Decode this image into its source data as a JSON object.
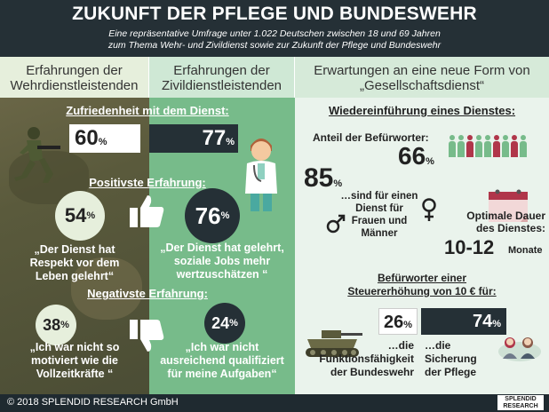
{
  "header": {
    "title": "ZUKUNFT DER PFLEGE UND BUNDESWEHR",
    "subtitle_line1": "Eine repräsentative Umfrage unter 1.022 Deutschen zwischen 18 und 69 Jahren",
    "subtitle_line2": "zum Thema Wehr- und Zivildienst sowie zur Zukunft der Pflege und Bundeswehr"
  },
  "columns": {
    "left_l1": "Erfahrungen der",
    "left_l2": "Wehrdienstleistenden",
    "mid_l1": "Erfahrungen der",
    "mid_l2": "Zivildienstleistenden",
    "right_l1": "Erwartungen an eine neue Form von",
    "right_l2": "„Gesellschaftsdienst“"
  },
  "satisfaction": {
    "label": "Zufriedenheit mit dem Dienst:",
    "wehr_value": "60",
    "zivil_value": "77",
    "pct": "%"
  },
  "positive": {
    "label": "Positivste Erfahrung:",
    "wehr_value": "54",
    "zivil_value": "76",
    "wehr_quote_l1": "„Der Dienst hat",
    "wehr_quote_l2": "Respekt vor dem",
    "wehr_quote_l3": "Leben gelehrt“",
    "zivil_quote_l1": "„Der Dienst hat gelehrt,",
    "zivil_quote_l2": "soziale Jobs mehr",
    "zivil_quote_l3": "wertzuschätzen “"
  },
  "negative": {
    "label": "Negativste Erfahrung:",
    "wehr_value": "38",
    "zivil_value": "24",
    "wehr_quote_l1": "„Ich war nicht so",
    "wehr_quote_l2": "motiviert wie die",
    "wehr_quote_l3": "Vollzeitkräfte “",
    "zivil_quote_l1": "„Ich war nicht",
    "zivil_quote_l2": "ausreichend qualifiziert",
    "zivil_quote_l3": "für meine Aufgaben“"
  },
  "reintroduction": {
    "label": "Wiedereinführung eines Dienstes:",
    "supporters_label": "Anteil der Befürworter:",
    "supporters_value": "66",
    "both_value": "85",
    "both_l1": "…sind für einen",
    "both_l2": "Dienst für",
    "both_l3": "Frauen und",
    "both_l4": "Männer",
    "duration_l1": "Optimale Dauer",
    "duration_l2": "des Dienstes:",
    "duration_value": "10-12",
    "duration_unit": "Monate",
    "pct": "%"
  },
  "tax": {
    "label_l1": "Befürworter einer",
    "label_l2": "Steuererhöhung von 10 € für:",
    "bw_value": "26",
    "care_value": "74",
    "bw_l1": "…die",
    "bw_l2": "Funktionsfähigkeit",
    "bw_l3": "der Bundeswehr",
    "care_l1": "…die",
    "care_l2": "Sicherung",
    "care_l3": "der Pflege"
  },
  "footer": {
    "copyright": "© 2018 SPLENDID RESEARCH GmbH",
    "logo_l1": "SPLENDID",
    "logo_l2": "RESEARCH"
  },
  "colors": {
    "dark": "#253036",
    "green": "#77bb8a",
    "olive": "#5a5a3c",
    "red": "#b0364a"
  },
  "icons": [
    "soldier-icon",
    "doctor-icon",
    "thumbs-up-icon",
    "thumbs-down-icon",
    "people-icon",
    "female-icon",
    "male-icon",
    "calendar-icon",
    "tank-icon",
    "elderly-people-icon"
  ]
}
